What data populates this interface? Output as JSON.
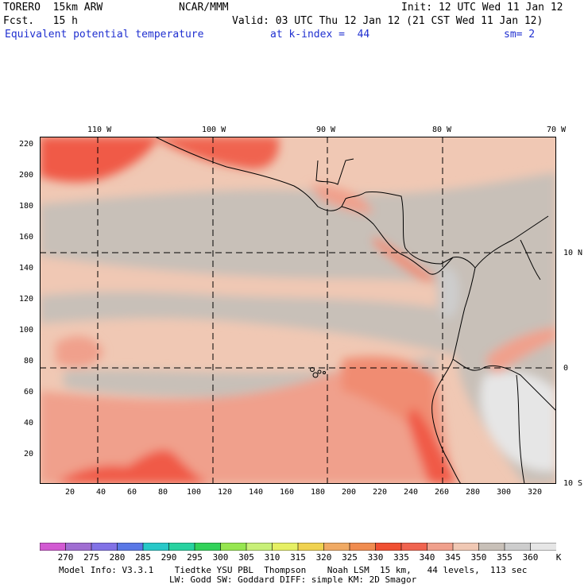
{
  "header": {
    "model": "TORERO  15km ARW",
    "center": "NCAR/MMM",
    "init": "Init: 12 UTC Wed 11 Jan 12",
    "fcst": "Fcst.   15 h",
    "valid": "Valid: 03 UTC Thu 12 Jan 12 (21 CST Wed 11 Jan 12)",
    "field": "Equivalent potential temperature",
    "level": "at k-index =  44",
    "smooth": "sm= 2"
  },
  "map": {
    "lon_labels": [
      "110 W",
      "100 W",
      "90 W",
      "80 W",
      "70 W"
    ],
    "lat_labels": [
      "10 N",
      "0",
      "10 S"
    ],
    "y_ticks": [
      "220",
      "200",
      "180",
      "160",
      "140",
      "120",
      "100",
      "80",
      "60",
      "40",
      "20"
    ],
    "x_ticks": [
      "20",
      "40",
      "60",
      "80",
      "100",
      "120",
      "140",
      "160",
      "180",
      "200",
      "220",
      "240",
      "260",
      "280",
      "300",
      "320"
    ]
  },
  "colorbar": {
    "labels": [
      "270",
      "275",
      "280",
      "285",
      "290",
      "295",
      "300",
      "305",
      "310",
      "315",
      "320",
      "325",
      "330",
      "335",
      "340",
      "345",
      "350",
      "355",
      "360"
    ],
    "unit": "K",
    "colors": [
      "#d25ad2",
      "#a06ed2",
      "#8272e6",
      "#5a78e6",
      "#28c8c8",
      "#28d2a0",
      "#32d25a",
      "#96e650",
      "#c8f078",
      "#e6f064",
      "#f0d250",
      "#f0aa64",
      "#f08c50",
      "#f05032",
      "#f06450",
      "#f0a08c",
      "#f0c8b4",
      "#c8c0b8",
      "#cdcdcd",
      "#e6e6e6"
    ]
  },
  "footer": {
    "line1": "Model Info: V3.3.1    Tiedtke YSU PBL  Thompson    Noah LSM  15 km,   44 levels,  113 sec",
    "line2": "LW: Godd SW: Goddard DIFF: simple KM: 2D Smagor"
  }
}
